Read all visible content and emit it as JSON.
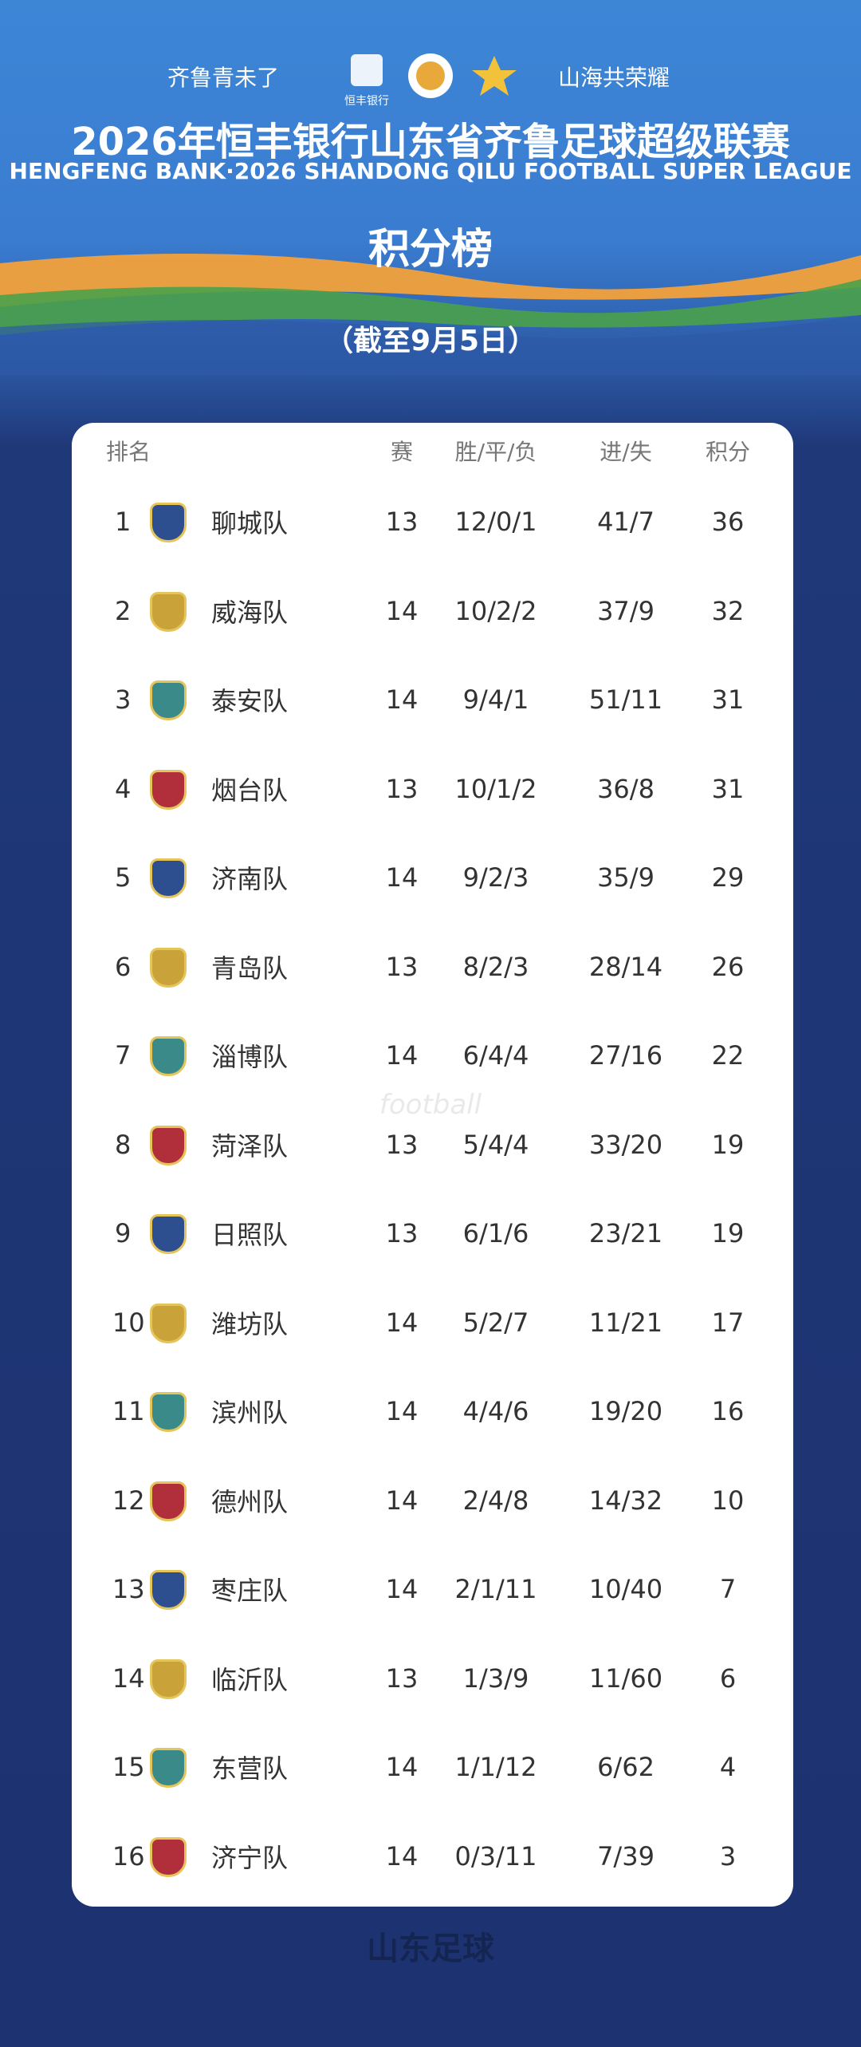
{
  "header": {
    "slogan_left": "齐鲁青未了",
    "sponsor": "恒丰银行",
    "slogan_right": "山海共荣耀",
    "title": "2026年恒丰银行山东省齐鲁足球超级联赛",
    "subtitle": "HENGFENG BANK·2026 SHANDONG QILU FOOTBALL SUPER LEAGUE",
    "heading": "积分榜",
    "date": "（截至9月5日）"
  },
  "table": {
    "columns": [
      "排名",
      "赛",
      "胜/平/负",
      "进/失",
      "积分"
    ],
    "rows": [
      [
        1,
        "聊城队",
        13,
        "12/0/1",
        "41/7",
        36
      ],
      [
        2,
        "威海队",
        14,
        "10/2/2",
        "37/9",
        32
      ],
      [
        3,
        "泰安队",
        14,
        "9/4/1",
        "51/11",
        31
      ],
      [
        4,
        "烟台队",
        13,
        "10/1/2",
        "36/8",
        31
      ],
      [
        5,
        "济南队",
        14,
        "9/2/3",
        "35/9",
        29
      ],
      [
        6,
        "青岛队",
        13,
        "8/2/3",
        "28/14",
        26
      ],
      [
        7,
        "淄博队",
        14,
        "6/4/4",
        "27/16",
        22
      ],
      [
        8,
        "菏泽队",
        13,
        "5/4/4",
        "33/20",
        19
      ],
      [
        9,
        "日照队",
        13,
        "6/1/6",
        "23/21",
        19
      ],
      [
        10,
        "潍坊队",
        14,
        "5/2/7",
        "11/21",
        17
      ],
      [
        11,
        "滨州队",
        14,
        "4/4/6",
        "19/20",
        16
      ],
      [
        12,
        "德州队",
        14,
        "2/4/8",
        "14/32",
        10
      ],
      [
        13,
        "枣庄队",
        14,
        "2/1/11",
        "10/40",
        7
      ],
      [
        14,
        "临沂队",
        13,
        "1/3/9",
        "11/60",
        6
      ],
      [
        15,
        "东营队",
        14,
        "1/1/12",
        "6/62",
        4
      ],
      [
        16,
        "济宁队",
        14,
        "0/3/11",
        "7/39",
        3
      ]
    ]
  },
  "footer": {
    "watermark": "山东足球",
    "watermark_sub": "football"
  }
}
